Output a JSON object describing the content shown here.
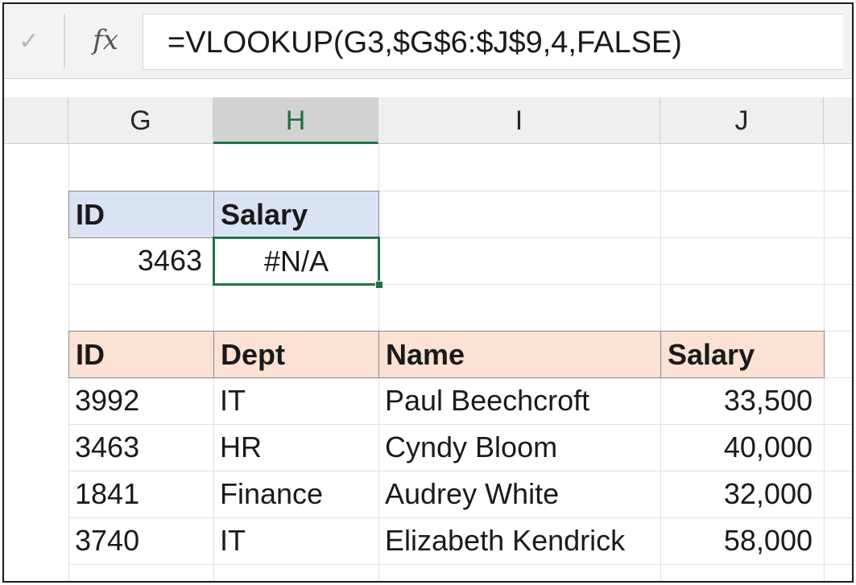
{
  "formula_bar": {
    "check_icon": "checkmark-icon",
    "fx_label": "fx",
    "formula": "=VLOOKUP(G3,$G$6:$J$9,4,FALSE)"
  },
  "columns": [
    "G",
    "H",
    "I",
    "J"
  ],
  "active_column": "H",
  "lookup": {
    "headers": [
      "ID",
      "Salary"
    ],
    "id_value": "3463",
    "result": "#N/A"
  },
  "table": {
    "headers": [
      "ID",
      "Dept",
      "Name",
      "Salary"
    ],
    "rows": [
      [
        "3992",
        "IT",
        "Paul Beechcroft",
        "33,500"
      ],
      [
        "3463",
        "HR",
        "Cyndy Bloom",
        "40,000"
      ],
      [
        "1841",
        "Finance",
        "Audrey White",
        "32,000"
      ],
      [
        "3740",
        "IT",
        "Elizabeth Kendrick",
        "58,000"
      ]
    ]
  },
  "colors": {
    "accent_green": "#217346",
    "header_blue": "#dae3f3",
    "header_orange": "#fbe2d5"
  }
}
